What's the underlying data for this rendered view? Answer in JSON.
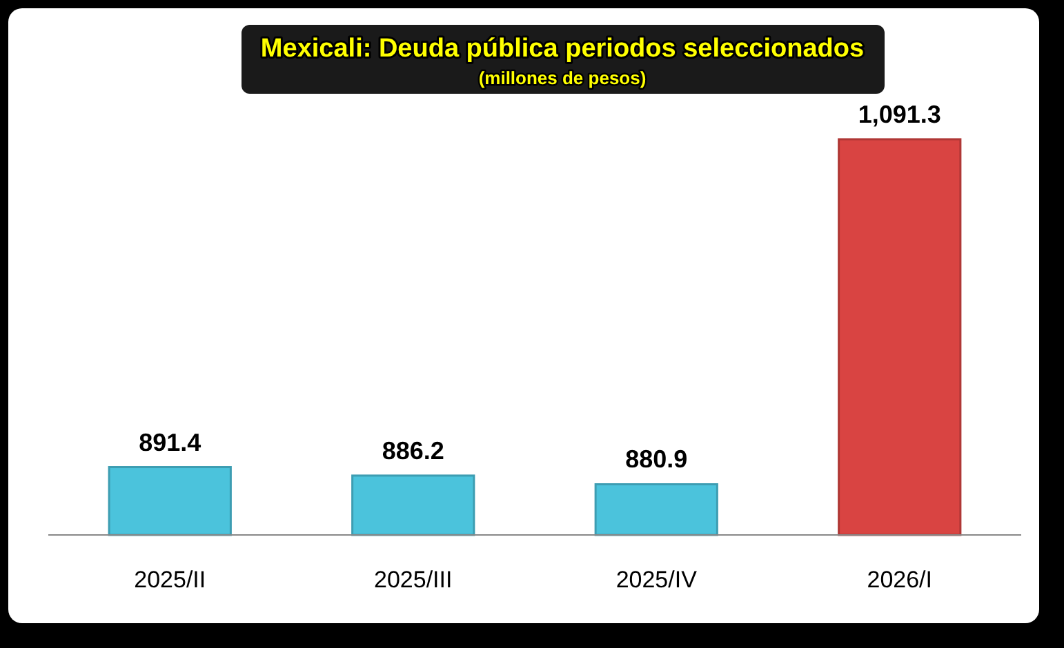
{
  "chart_data": {
    "type": "bar",
    "title": "Mexicali: Deuda pública periodos seleccionados",
    "subtitle": "(millones de pesos)",
    "categories": [
      "2025/II",
      "2025/III",
      "2025/IV",
      "2026/I"
    ],
    "values": [
      891.4,
      886.2,
      880.9,
      1091.3
    ],
    "colors": [
      "#4bc3dc",
      "#4bc3dc",
      "#4bc3dc",
      "#d94442"
    ],
    "value_labels": [
      "891.4",
      "886.2",
      "880.9",
      "1,091.3"
    ],
    "ylim": [
      850,
      1091.3
    ],
    "tick_labels": "x"
  }
}
